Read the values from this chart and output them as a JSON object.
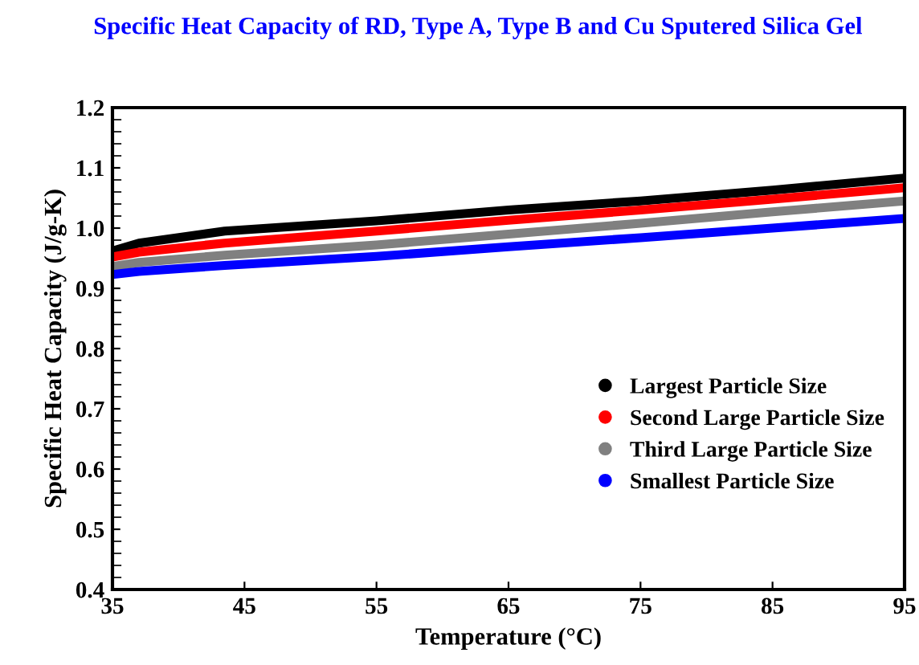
{
  "chart_data": {
    "type": "line",
    "title": "Specific Heat Capacity of RD, Type A, Type B and Cu Sputered Silica Gel",
    "xlabel": "Temperature (°C)",
    "ylabel": "Specific Heat Capacity (J/g-K)",
    "x": [
      35,
      37,
      43.5,
      55,
      65,
      75,
      85,
      95
    ],
    "series": [
      {
        "name": "Largest Particle Size",
        "color": "#000000",
        "values": [
          0.962,
          0.975,
          0.995,
          1.012,
          1.03,
          1.045,
          1.063,
          1.083
        ]
      },
      {
        "name": "Second Large Particle Size",
        "color": "#ff0000",
        "values": [
          0.952,
          0.96,
          0.975,
          0.995,
          1.013,
          1.03,
          1.048,
          1.067
        ]
      },
      {
        "name": "Third Large Particle Size",
        "color": "#808080",
        "values": [
          0.936,
          0.943,
          0.955,
          0.972,
          0.99,
          1.008,
          1.027,
          1.045
        ]
      },
      {
        "name": "Smallest Particle Size",
        "color": "#0000ff",
        "values": [
          0.923,
          0.928,
          0.938,
          0.953,
          0.969,
          0.984,
          1.0,
          1.016
        ]
      }
    ],
    "xlim": [
      35,
      95
    ],
    "xticks": [
      35,
      45,
      55,
      65,
      75,
      85,
      95
    ],
    "ylim": [
      0.4,
      1.2
    ],
    "yticks": [
      {
        "value": 0.4,
        "label": "0.4"
      },
      {
        "value": 0.5,
        "label": "0.5"
      },
      {
        "value": 0.6,
        "label": "0.6"
      },
      {
        "value": 0.7,
        "label": "0.7"
      },
      {
        "value": 0.8,
        "label": "0.8"
      },
      {
        "value": 0.9,
        "label": "0.9"
      },
      {
        "value": 1.0,
        "label": "1.0"
      },
      {
        "value": 1.1,
        "label": "1.1"
      },
      {
        "value": 1.2,
        "label": "1.2"
      }
    ],
    "grid": false,
    "legend": "center right",
    "line_style": "solid"
  }
}
